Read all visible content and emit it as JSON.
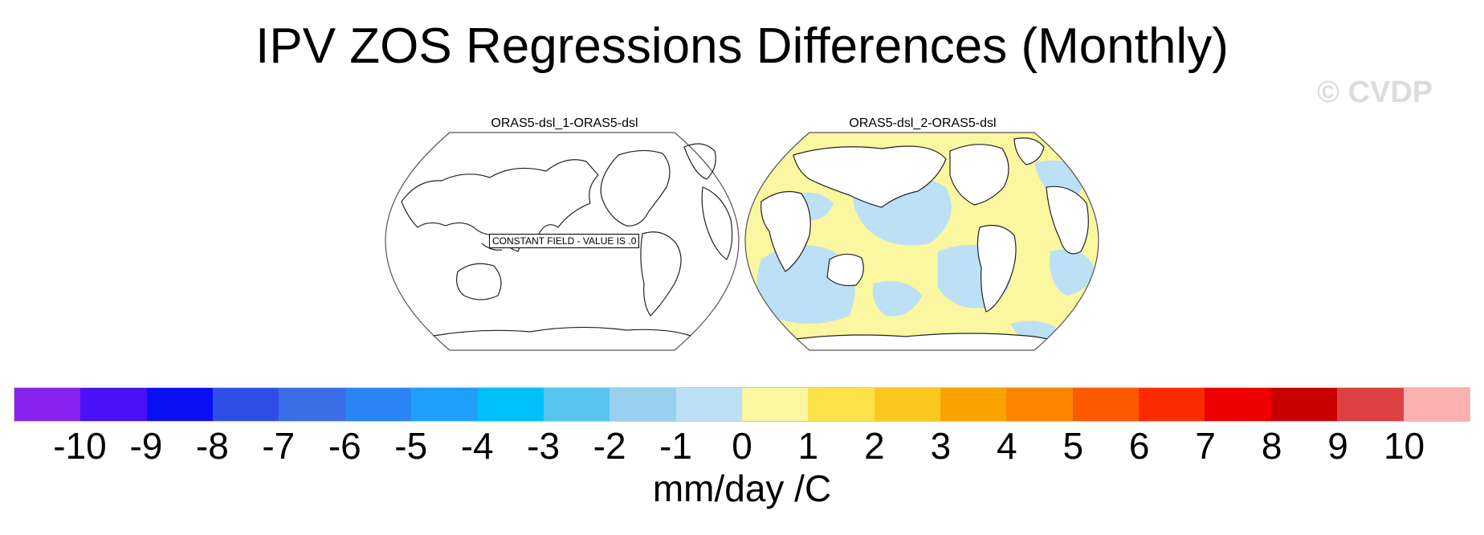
{
  "title": "IPV ZOS Regressions Differences (Monthly)",
  "watermark": "© CVDP",
  "panels": [
    {
      "title": "ORAS5-dsl_1-ORAS5-dsl",
      "annotation": "CONSTANT FIELD - VALUE IS .0",
      "projection": "Robinson (Pacific-centered)"
    },
    {
      "title": "ORAS5-dsl_2-ORAS5-dsl",
      "fill_colors": {
        "negative": "#bce0f5",
        "positive": "#fbf6a0"
      }
    }
  ],
  "colorbar": {
    "colors": [
      "#8a22f0",
      "#4a10f8",
      "#0a10f2",
      "#2e4ee6",
      "#3a6ee6",
      "#2a86f4",
      "#1ea0fa",
      "#00c0fa",
      "#58c4f0",
      "#98d0ee",
      "#bce0f5",
      "#fbf6a0",
      "#fde24a",
      "#fdc81e",
      "#fda300",
      "#fd8500",
      "#fd5a00",
      "#fd2a00",
      "#ee0000",
      "#c80000",
      "#dc4040",
      "#fcb0b0"
    ],
    "ticks": [
      "-10",
      "-9",
      "-8",
      "-7",
      "-6",
      "-5",
      "-4",
      "-3",
      "-2",
      "-1",
      "0",
      "1",
      "2",
      "3",
      "4",
      "5",
      "6",
      "7",
      "8",
      "9",
      "10"
    ],
    "label": "mm/day /C"
  }
}
